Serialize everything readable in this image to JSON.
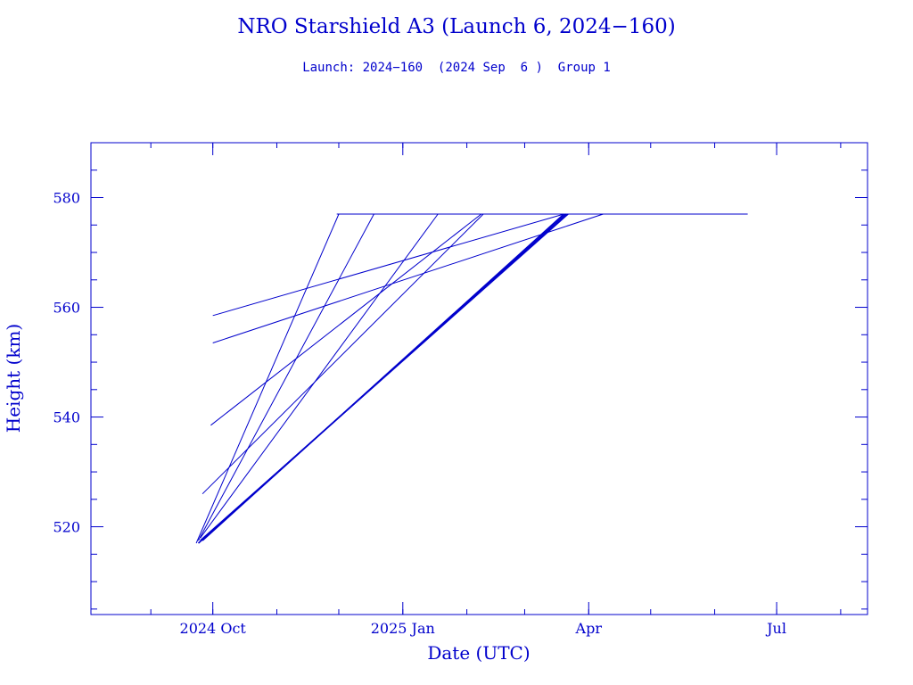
{
  "chart_data": {
    "type": "line",
    "title": "NRO Starshield A3 (Launch 6, 2024−160)",
    "subtitle": "Launch: 2024−160  (2024 Sep  6 )  Group 1",
    "xlabel": "Date (UTC)",
    "ylabel": "Height (km)",
    "x_ticks": [
      {
        "date": "2024-10-01",
        "label": "2024 Oct"
      },
      {
        "date": "2025-01-01",
        "label": "2025 Jan"
      },
      {
        "date": "2025-04-01",
        "label": "Apr"
      },
      {
        "date": "2025-07-01",
        "label": "Jul"
      }
    ],
    "y_ticks": [
      520,
      540,
      560,
      580
    ],
    "xlim": [
      "2024-08-03",
      "2025-08-14"
    ],
    "ylim": [
      504,
      590
    ],
    "color": "#0000cc",
    "series": [
      {
        "x": [
          "2024-09-23",
          "2024-12-01"
        ],
        "y": [
          517,
          577
        ]
      },
      {
        "x": [
          "2024-09-24",
          "2024-12-18"
        ],
        "y": [
          517.5,
          577
        ]
      },
      {
        "x": [
          "2024-09-25",
          "2025-01-18"
        ],
        "y": [
          518,
          577
        ]
      },
      {
        "x": [
          "2024-09-24",
          "2025-03-21"
        ],
        "y": [
          517,
          577
        ]
      },
      {
        "x": [
          "2024-09-25",
          "2025-03-22"
        ],
        "y": [
          517.5,
          577
        ]
      },
      {
        "x": [
          "2024-09-26",
          "2025-03-20"
        ],
        "y": [
          517.5,
          577
        ]
      },
      {
        "x": [
          "2024-09-30",
          "2025-02-08"
        ],
        "y": [
          538.5,
          577
        ]
      },
      {
        "x": [
          "2024-09-26",
          "2025-02-09"
        ],
        "y": [
          526,
          577
        ]
      },
      {
        "x": [
          "2024-10-01",
          "2025-03-20"
        ],
        "y": [
          558.5,
          577
        ]
      },
      {
        "x": [
          "2024-10-01",
          "2025-04-08"
        ],
        "y": [
          553.5,
          577
        ]
      },
      {
        "x": [
          "2024-11-30",
          "2025-06-17"
        ],
        "y": [
          577,
          577
        ]
      }
    ]
  }
}
